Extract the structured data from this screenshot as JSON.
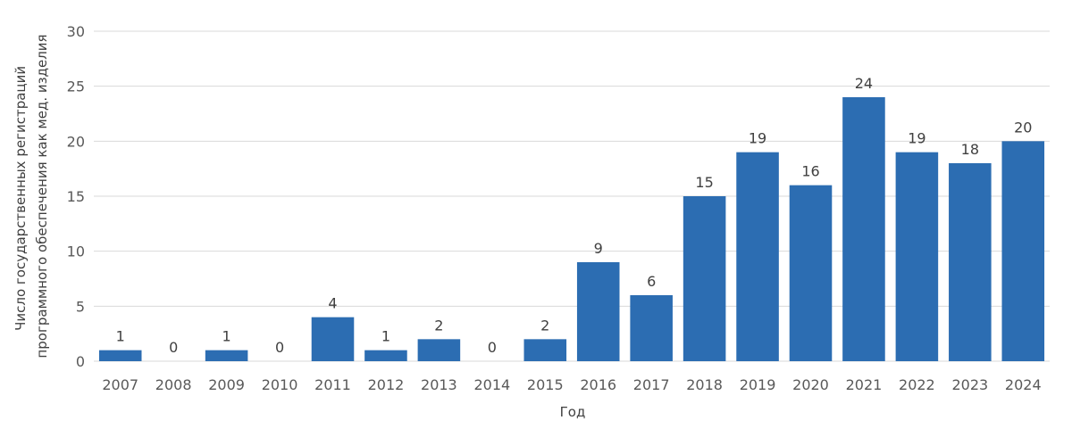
{
  "chart_data": {
    "type": "bar",
    "title": "",
    "xlabel": "Год",
    "ylabel": [
      "Число государственных регистраций",
      "программного обеспечения как мед. изделия"
    ],
    "categories": [
      "2007",
      "2008",
      "2009",
      "2010",
      "2011",
      "2012",
      "2013",
      "2014",
      "2015",
      "2016",
      "2017",
      "2018",
      "2019",
      "2020",
      "2021",
      "2022",
      "2023",
      "2024"
    ],
    "values": [
      1,
      0,
      1,
      0,
      4,
      1,
      2,
      0,
      2,
      9,
      6,
      15,
      19,
      16,
      24,
      19,
      18,
      20
    ],
    "ylim": [
      0,
      30
    ],
    "yticks": [
      0,
      5,
      10,
      15,
      20,
      25,
      30
    ],
    "grid": true,
    "legend": "none",
    "bar_color": "#2c6db2",
    "grid_color": "#d9d9d9",
    "text_color": "#595959"
  }
}
